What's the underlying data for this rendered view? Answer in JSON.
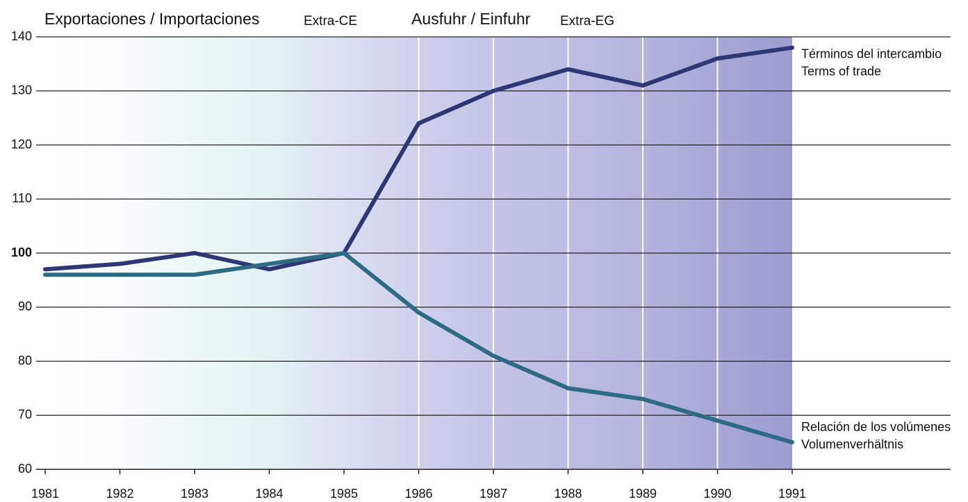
{
  "chart_data": {
    "type": "line",
    "title": "Exportaciones / Importaciones",
    "title_note": "Extra-CE",
    "title2": "Ausfuhr / Einfuhr",
    "title2_note": "Extra-EG",
    "x": [
      1981,
      1982,
      1983,
      1984,
      1985,
      1986,
      1987,
      1988,
      1989,
      1990,
      1991
    ],
    "xlim": [
      1981,
      1991
    ],
    "xticks": [
      1981,
      1982,
      1983,
      1984,
      1985,
      1986,
      1987,
      1988,
      1989,
      1990,
      1991
    ],
    "ylim": [
      60,
      140
    ],
    "yticks": [
      60,
      70,
      80,
      90,
      100,
      110,
      120,
      130,
      140
    ],
    "grid": true,
    "series": [
      {
        "name": "Términos del intercambio",
        "name2": "Terms of trade",
        "color": "#2e3674",
        "values": [
          97,
          98,
          100,
          97,
          100,
          124,
          130,
          134,
          131,
          136,
          138
        ]
      },
      {
        "name": "Relación de los volúmenes",
        "name2": "Volumenverhältnis",
        "color": "#2d6a83",
        "values": [
          96,
          96,
          96,
          98,
          100,
          89,
          81,
          75,
          73,
          69,
          65
        ]
      }
    ]
  }
}
